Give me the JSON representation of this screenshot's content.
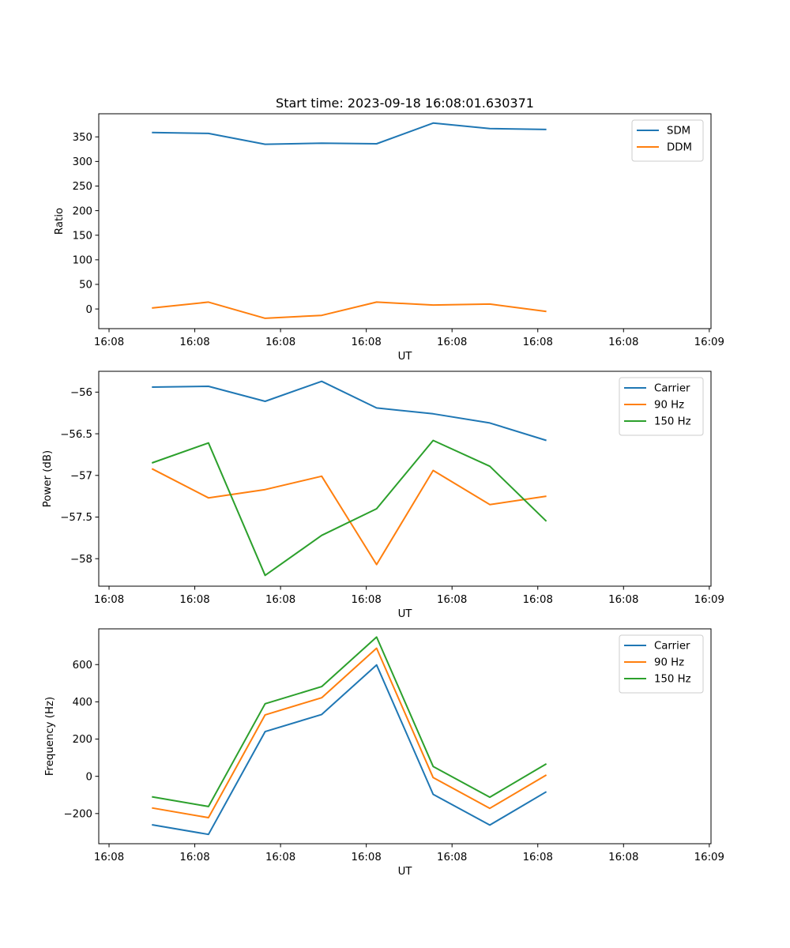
{
  "chart_data": [
    {
      "type": "line",
      "title": "Start time: 2023-09-18 16:08:01.630371",
      "xlabel": "UT",
      "ylabel": "Ratio",
      "x_tick_labels": [
        "16:08",
        "16:08",
        "16:08",
        "16:08",
        "16:08",
        "16:08",
        "16:08",
        "16:09"
      ],
      "x_tick_seconds": [
        0,
        5,
        10,
        15,
        20,
        25,
        30,
        35
      ],
      "xlim_seconds": [
        -0.6,
        35.1
      ],
      "x_seconds": [
        2.5,
        5.8,
        9.1,
        12.4,
        15.6,
        18.9,
        22.2,
        25.5
      ],
      "ylim": [
        -40,
        397
      ],
      "y_ticks": [
        0,
        50,
        100,
        150,
        200,
        250,
        300,
        350
      ],
      "legend_position": "top-right",
      "series": [
        {
          "name": "SDM",
          "color": "#1f77b4",
          "values": [
            359,
            357,
            335,
            337,
            336,
            378,
            367,
            365
          ]
        },
        {
          "name": "DDM",
          "color": "#ff7f0e",
          "values": [
            2,
            14,
            -19,
            -13,
            14,
            8,
            10,
            -5
          ]
        }
      ]
    },
    {
      "type": "line",
      "title": "",
      "xlabel": "UT",
      "ylabel": "Power (dB)",
      "x_tick_labels": [
        "16:08",
        "16:08",
        "16:08",
        "16:08",
        "16:08",
        "16:08",
        "16:08",
        "16:09"
      ],
      "x_tick_seconds": [
        0,
        5,
        10,
        15,
        20,
        25,
        30,
        35
      ],
      "xlim_seconds": [
        -0.6,
        35.1
      ],
      "x_seconds": [
        2.5,
        5.8,
        9.1,
        12.4,
        15.6,
        18.9,
        22.2,
        25.5
      ],
      "ylim": [
        -58.33,
        -55.75
      ],
      "y_ticks": [
        -58.0,
        -57.5,
        -57.0,
        -56.5,
        -56.0
      ],
      "legend_position": "top-right",
      "series": [
        {
          "name": "Carrier",
          "color": "#1f77b4",
          "values": [
            -55.94,
            -55.93,
            -56.11,
            -55.87,
            -56.19,
            -56.26,
            -56.37,
            -56.58
          ]
        },
        {
          "name": "90 Hz",
          "color": "#ff7f0e",
          "values": [
            -56.92,
            -57.27,
            -57.17,
            -57.01,
            -58.07,
            -56.94,
            -57.35,
            -57.25
          ]
        },
        {
          "name": "150 Hz",
          "color": "#2ca02c",
          "values": [
            -56.85,
            -56.61,
            -58.2,
            -57.72,
            -57.4,
            -56.58,
            -56.89,
            -57.55
          ]
        }
      ]
    },
    {
      "type": "line",
      "title": "",
      "xlabel": "UT",
      "ylabel": "Frequency (Hz)",
      "x_tick_labels": [
        "16:08",
        "16:08",
        "16:08",
        "16:08",
        "16:08",
        "16:08",
        "16:08",
        "16:09"
      ],
      "x_tick_seconds": [
        0,
        5,
        10,
        15,
        20,
        25,
        30,
        35
      ],
      "xlim_seconds": [
        -0.6,
        35.1
      ],
      "x_seconds": [
        2.5,
        5.8,
        9.1,
        12.4,
        15.6,
        18.9,
        22.2,
        25.5
      ],
      "ylim": [
        -362,
        792
      ],
      "y_ticks": [
        -200,
        0,
        200,
        400,
        600
      ],
      "legend_position": "top-right",
      "series": [
        {
          "name": "Carrier",
          "color": "#1f77b4",
          "values": [
            -260,
            -312,
            240,
            332,
            598,
            -97,
            -262,
            -83
          ]
        },
        {
          "name": "90 Hz",
          "color": "#ff7f0e",
          "values": [
            -170,
            -222,
            330,
            422,
            688,
            -7,
            -172,
            7
          ]
        },
        {
          "name": "150 Hz",
          "color": "#2ca02c",
          "values": [
            -110,
            -162,
            390,
            482,
            748,
            53,
            -112,
            67
          ]
        }
      ]
    }
  ]
}
